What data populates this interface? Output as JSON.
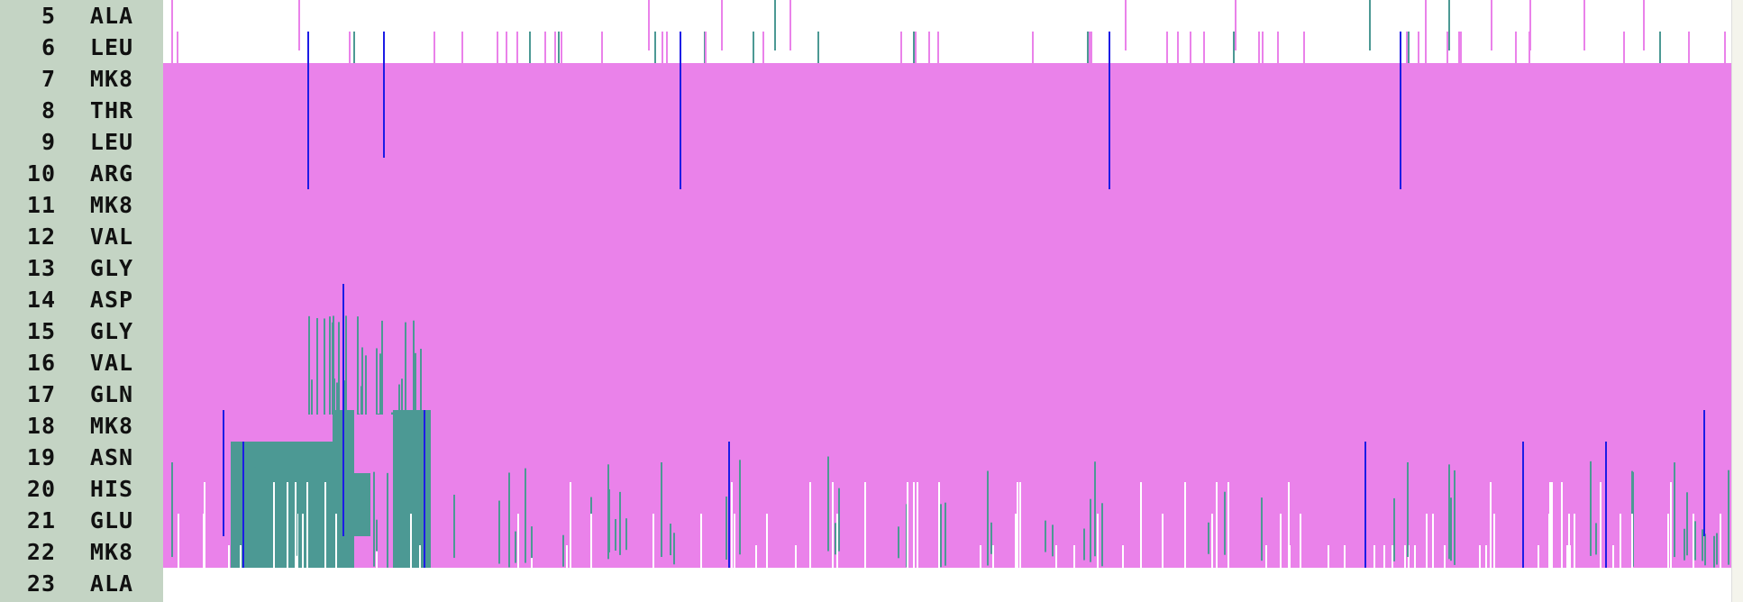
{
  "chart_data": {
    "type": "heatmap",
    "title": "",
    "xlabel": "",
    "ylabel": "",
    "residues": [
      {
        "num": "5",
        "name": "ALA"
      },
      {
        "num": "6",
        "name": "LEU"
      },
      {
        "num": "7",
        "name": "MK8"
      },
      {
        "num": "8",
        "name": "THR"
      },
      {
        "num": "9",
        "name": "LEU"
      },
      {
        "num": "10",
        "name": "ARG"
      },
      {
        "num": "11",
        "name": "MK8"
      },
      {
        "num": "12",
        "name": "VAL"
      },
      {
        "num": "13",
        "name": "GLY"
      },
      {
        "num": "14",
        "name": "ASP"
      },
      {
        "num": "15",
        "name": "GLY"
      },
      {
        "num": "16",
        "name": "VAL"
      },
      {
        "num": "17",
        "name": "GLN"
      },
      {
        "num": "18",
        "name": "MK8"
      },
      {
        "num": "19",
        "name": "ASN"
      },
      {
        "num": "20",
        "name": "HIS"
      },
      {
        "num": "21",
        "name": "GLU"
      },
      {
        "num": "22",
        "name": "MK8"
      },
      {
        "num": "23",
        "name": "ALA"
      }
    ],
    "colors": {
      "helix": "#ea82ea",
      "teal": "#4c9994",
      "blue": "#1c1ce6",
      "coil": "#ffffff"
    },
    "frames": 1740,
    "helix_block": {
      "start_residue": "7",
      "end_residue": "22"
    },
    "teal_block": [
      {
        "frames": [
          75,
          202
        ],
        "residues": [
          "19",
          "20",
          "21",
          "22"
        ]
      },
      {
        "frames": [
          188,
          212
        ],
        "residues": [
          "18",
          "19",
          "20",
          "21",
          "22"
        ]
      },
      {
        "frames": [
          255,
          297
        ],
        "residues": [
          "18",
          "19",
          "20",
          "21",
          "22"
        ]
      },
      {
        "frames": [
          160,
          230
        ],
        "residues": [
          "20",
          "21"
        ]
      }
    ],
    "blue_lines": [
      {
        "frame": 160,
        "residues": [
          "6",
          "10"
        ]
      },
      {
        "frame": 244,
        "residues": [
          "6",
          "9"
        ]
      },
      {
        "frame": 573,
        "residues": [
          "6",
          "10"
        ]
      },
      {
        "frame": 1049,
        "residues": [
          "6",
          "10"
        ]
      },
      {
        "frame": 1372,
        "residues": [
          "6",
          "10"
        ]
      },
      {
        "frame": 199,
        "residues": [
          "14",
          "21"
        ]
      },
      {
        "frame": 66,
        "residues": [
          "18",
          "21"
        ]
      },
      {
        "frame": 88,
        "residues": [
          "19",
          "22"
        ]
      },
      {
        "frame": 289,
        "residues": [
          "18",
          "22"
        ]
      },
      {
        "frame": 627,
        "residues": [
          "19",
          "22"
        ]
      },
      {
        "frame": 1333,
        "residues": [
          "19",
          "22"
        ]
      },
      {
        "frame": 1508,
        "residues": [
          "19",
          "22"
        ]
      },
      {
        "frame": 1600,
        "residues": [
          "19",
          "22"
        ]
      },
      {
        "frame": 1709,
        "residues": [
          "18",
          "21"
        ]
      }
    ]
  }
}
